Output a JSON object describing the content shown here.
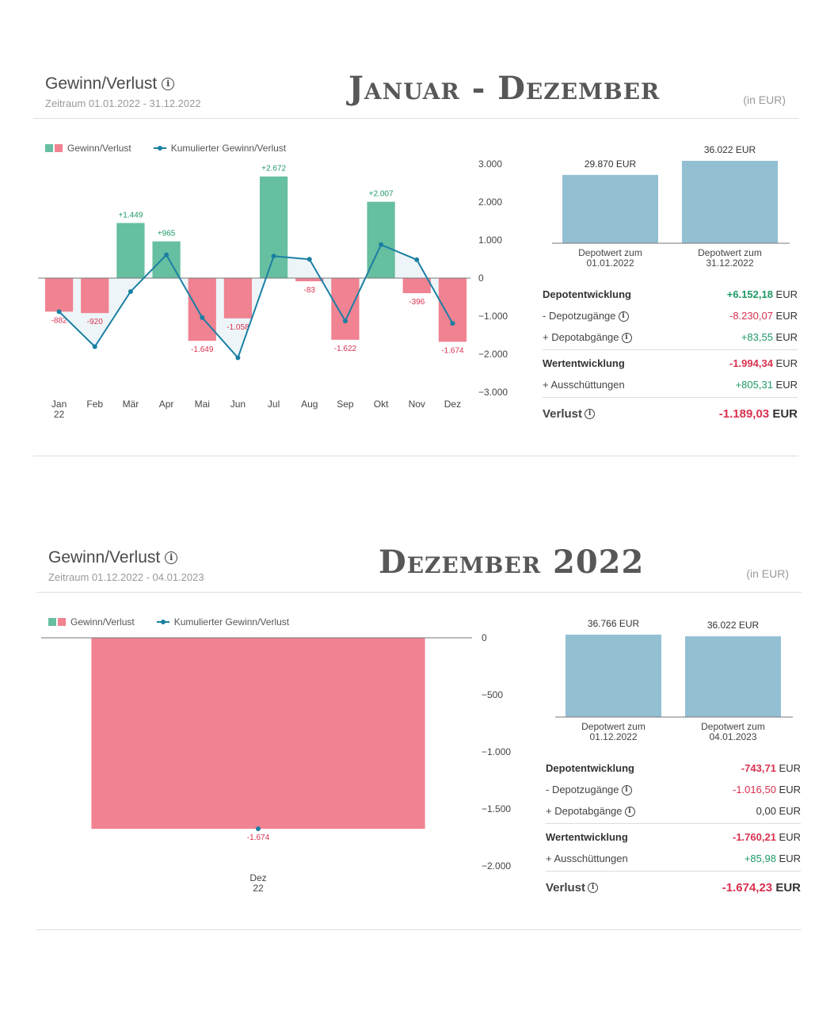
{
  "colors": {
    "gain": "#66bfa0",
    "loss": "#f08291",
    "line": "#1b7fa3",
    "depot_bar": "#93bfd3",
    "positive_text": "#1f9a66",
    "negative_text": "#d9314f"
  },
  "panels": [
    {
      "header": {
        "title": "Gewinn/Verlust",
        "period": "Zeitraum 01.01.2022 - 31.12.2022",
        "big_title": "Januar - Dezember",
        "unit": "(in EUR)"
      },
      "legend": {
        "bars": "Gewinn/Verlust",
        "line": "Kumulierter Gewinn/Verlust"
      },
      "depot_bars": {
        "values": [
          29870,
          36022
        ],
        "value_labels": [
          "29.870 EUR",
          "36.022 EUR"
        ],
        "labels": [
          [
            "Depotwert zum",
            "01.01.2022"
          ],
          [
            "Depotwert zum",
            "31.12.2022"
          ]
        ]
      },
      "rows": [
        {
          "label": "Depotentwicklung",
          "value": "+6.152,18",
          "currency": "EUR",
          "sign": "pos",
          "bold": true,
          "info": false
        },
        {
          "label": "- Depotzugänge",
          "value": "-8.230,07",
          "currency": "EUR",
          "sign": "neg",
          "bold": false,
          "info": true
        },
        {
          "label": "+ Depotabgänge",
          "value": "+83,55",
          "currency": "EUR",
          "sign": "pos",
          "bold": false,
          "info": true,
          "sep_after": true
        },
        {
          "label": "Wertentwicklung",
          "value": "-1.994,34",
          "currency": "EUR",
          "sign": "neg",
          "bold": true,
          "info": false
        },
        {
          "label": "+ Ausschüttungen",
          "value": "+805,31",
          "currency": "EUR",
          "sign": "pos",
          "bold": false,
          "info": false,
          "sep_after": true
        },
        {
          "label": "Verlust",
          "value": "-1.189,03",
          "currency": "EUR",
          "sign": "neg",
          "bold": true,
          "info": true,
          "total": true
        }
      ]
    },
    {
      "header": {
        "title": "Gewinn/Verlust",
        "period": "Zeitraum 01.12.2022 - 04.01.2023",
        "big_title": "Dezember 2022",
        "unit": "(in EUR)"
      },
      "legend": {
        "bars": "Gewinn/Verlust",
        "line": "Kumulierter Gewinn/Verlust"
      },
      "depot_bars": {
        "values": [
          36766,
          36022
        ],
        "value_labels": [
          "36.766 EUR",
          "36.022 EUR"
        ],
        "labels": [
          [
            "Depotwert zum",
            "01.12.2022"
          ],
          [
            "Depotwert zum",
            "04.01.2023"
          ]
        ]
      },
      "rows": [
        {
          "label": "Depotentwicklung",
          "value": "-743,71",
          "currency": "EUR",
          "sign": "neg",
          "bold": true,
          "info": false
        },
        {
          "label": "- Depotzugänge",
          "value": "-1.016,50",
          "currency": "EUR",
          "sign": "neg",
          "bold": false,
          "info": true
        },
        {
          "label": "+ Depotabgänge",
          "value": "0,00",
          "currency": "EUR",
          "sign": "cur",
          "bold": false,
          "info": true,
          "sep_after": true
        },
        {
          "label": "Wertentwicklung",
          "value": "-1.760,21",
          "currency": "EUR",
          "sign": "neg",
          "bold": true,
          "info": false
        },
        {
          "label": "+ Ausschüttungen",
          "value": "+85,98",
          "currency": "EUR",
          "sign": "pos",
          "bold": false,
          "info": false,
          "sep_after": true
        },
        {
          "label": "Verlust",
          "value": "-1.674,23",
          "currency": "EUR",
          "sign": "neg",
          "bold": true,
          "info": true,
          "total": true
        }
      ]
    }
  ],
  "chart_data": [
    {
      "type": "bar",
      "categories": [
        "Jan 22",
        "Feb",
        "Mär",
        "Apr",
        "Mai",
        "Jun",
        "Jul",
        "Aug",
        "Sep",
        "Okt",
        "Nov",
        "Dez"
      ],
      "series": [
        {
          "name": "Gewinn/Verlust",
          "values": [
            -882,
            -920,
            1449,
            965,
            -1649,
            -1058,
            2672,
            -83,
            -1622,
            2007,
            -396,
            -1674
          ],
          "labels": [
            "-882",
            "-920",
            "+1.449",
            "+965",
            "-1.649",
            "-1.058",
            "+2.672",
            "-83",
            "-1.622",
            "+2.007",
            "-396",
            "-1.674"
          ]
        },
        {
          "name": "Kumulierter Gewinn/Verlust",
          "type": "line",
          "values": [
            -882,
            -1802,
            -353,
            612,
            -1037,
            -2095,
            577,
            494,
            -1128,
            879,
            483,
            -1191
          ]
        }
      ],
      "ylim": [
        -3000,
        3000
      ],
      "yticks": [
        3000,
        2000,
        1000,
        0,
        -1000,
        -2000,
        -3000
      ],
      "ytick_labels": [
        "3.000",
        "2.000",
        "1.000",
        "0",
        "−1.000",
        "−2.000",
        "−3.000"
      ],
      "legend_position": "top-left"
    },
    {
      "type": "bar",
      "categories": [
        "Dez 22"
      ],
      "series": [
        {
          "name": "Gewinn/Verlust",
          "values": [
            -1674
          ],
          "labels": [
            "-1.674"
          ]
        },
        {
          "name": "Kumulierter Gewinn/Verlust",
          "type": "line",
          "values": [
            -1674
          ]
        }
      ],
      "ylim": [
        -2000,
        0
      ],
      "yticks": [
        0,
        -500,
        -1000,
        -1500,
        -2000
      ],
      "ytick_labels": [
        "0",
        "−500",
        "−1.000",
        "−1.500",
        "−2.000"
      ],
      "legend_position": "top-left"
    }
  ]
}
